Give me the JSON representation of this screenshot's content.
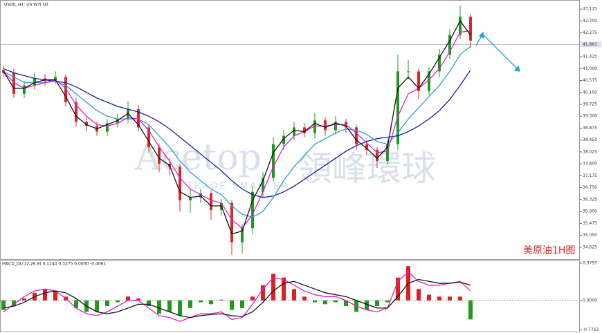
{
  "chart_data": [
    {
      "type": "candlestick",
      "title": "USOIL,H1: US WTI Oil",
      "watermark": [
        "Acetop",
        "領峰環球",
        "TRADE SMARTER"
      ],
      "annotation": "美原油1H图",
      "current_price": 41.861,
      "up_color": "#1d9a1d",
      "down_color": "#d42a2a",
      "open": [
        40.95,
        40.85,
        40.1,
        40.4,
        40.65,
        40.55,
        40.7,
        39.8,
        39.1,
        38.95,
        38.75,
        39.05,
        39.2,
        39.55,
        38.9,
        38.2,
        37.6,
        37.5,
        36.3,
        36.4,
        36.55,
        35.95,
        36.2,
        34.8,
        35.3,
        36.6,
        37.1,
        38.3,
        38.6,
        38.9,
        38.7,
        39.15,
        38.8,
        39.1,
        38.9,
        38.3,
        38.1,
        37.7,
        38.3,
        40.9,
        40.9,
        40.2,
        40.9,
        41.5,
        42.2,
        42.85
      ],
      "high": [
        41.1,
        41.0,
        40.55,
        40.85,
        40.8,
        40.9,
        40.8,
        39.95,
        39.25,
        39.1,
        39.2,
        39.4,
        39.85,
        39.7,
        39.0,
        38.3,
        37.8,
        37.6,
        36.7,
        36.7,
        36.65,
        36.35,
        36.3,
        35.45,
        36.8,
        37.3,
        38.55,
        38.8,
        39.1,
        39.05,
        39.4,
        39.25,
        39.3,
        39.2,
        39.0,
        38.45,
        38.2,
        38.5,
        41.5,
        41.3,
        41.0,
        41.05,
        41.7,
        42.4,
        43.25,
        42.95
      ],
      "low": [
        40.7,
        39.95,
        39.95,
        40.25,
        40.4,
        40.45,
        39.65,
        38.95,
        38.75,
        38.6,
        38.6,
        38.9,
        39.05,
        38.75,
        38.0,
        37.3,
        37.2,
        35.9,
        35.85,
        36.2,
        35.6,
        35.75,
        34.35,
        34.4,
        35.1,
        36.4,
        36.95,
        38.1,
        38.45,
        38.55,
        38.5,
        38.6,
        38.65,
        38.7,
        38.1,
        37.9,
        37.45,
        37.55,
        38.1,
        40.6,
        39.9,
        40.05,
        40.7,
        41.35,
        42.05,
        41.75
      ],
      "close": [
        40.85,
        40.1,
        40.4,
        40.65,
        40.55,
        40.7,
        39.8,
        39.1,
        38.95,
        38.75,
        39.05,
        39.2,
        39.55,
        38.9,
        38.2,
        37.6,
        37.5,
        36.3,
        36.4,
        36.55,
        35.95,
        36.2,
        34.8,
        35.3,
        36.6,
        37.1,
        38.3,
        38.6,
        38.9,
        38.7,
        39.15,
        38.8,
        39.1,
        38.9,
        38.3,
        38.1,
        37.7,
        38.3,
        40.9,
        40.9,
        40.2,
        40.9,
        41.5,
        42.2,
        42.85,
        42.0
      ],
      "series": [
        {
          "color": "#1b1b9a",
          "values": [
            41.0,
            40.85,
            40.75,
            40.65,
            40.6,
            40.55,
            40.5,
            40.35,
            40.15,
            39.95,
            39.8,
            39.65,
            39.55,
            39.45,
            39.3,
            39.1,
            38.85,
            38.55,
            38.25,
            37.95,
            37.65,
            37.35,
            37.0,
            36.7,
            36.5,
            36.4,
            36.45,
            36.6,
            36.8,
            37.05,
            37.3,
            37.55,
            37.8,
            38.05,
            38.25,
            38.4,
            38.5,
            38.55,
            38.6,
            38.75,
            38.95,
            39.2,
            39.5,
            39.9,
            40.4,
            40.95
          ]
        },
        {
          "color": "#2a9fd8",
          "values": [
            40.9,
            40.7,
            40.5,
            40.5,
            40.5,
            40.55,
            40.4,
            40.1,
            39.8,
            39.5,
            39.3,
            39.2,
            39.2,
            39.2,
            39.0,
            38.6,
            38.2,
            37.7,
            37.3,
            37.0,
            36.7,
            36.5,
            36.1,
            35.8,
            35.7,
            35.9,
            36.4,
            37.0,
            37.5,
            37.9,
            38.3,
            38.5,
            38.7,
            38.85,
            38.8,
            38.65,
            38.4,
            38.3,
            38.7,
            39.2,
            39.6,
            40.0,
            40.4,
            40.9,
            41.5,
            41.8
          ]
        },
        {
          "color": "#e020c8",
          "values": [
            40.9,
            40.5,
            40.3,
            40.4,
            40.5,
            40.6,
            40.3,
            39.7,
            39.3,
            39.0,
            38.95,
            39.05,
            39.25,
            39.2,
            38.8,
            38.2,
            37.7,
            37.1,
            36.7,
            36.5,
            36.3,
            36.2,
            35.6,
            35.3,
            35.8,
            36.6,
            37.5,
            38.2,
            38.6,
            38.75,
            38.95,
            38.95,
            39.0,
            39.0,
            38.7,
            38.35,
            38.0,
            38.05,
            39.3,
            40.1,
            40.3,
            40.6,
            41.0,
            41.6,
            42.3,
            42.35
          ]
        },
        {
          "color": "#111111",
          "values": [
            40.9,
            40.3,
            40.3,
            40.5,
            40.6,
            40.6,
            40.0,
            39.3,
            39.0,
            38.85,
            39.0,
            39.15,
            39.4,
            39.0,
            38.4,
            37.8,
            37.55,
            36.6,
            36.4,
            36.45,
            36.1,
            36.1,
            35.1,
            35.2,
            36.3,
            37.0,
            38.0,
            38.5,
            38.8,
            38.75,
            39.05,
            38.9,
            39.05,
            38.95,
            38.45,
            38.15,
            37.8,
            38.2,
            40.3,
            40.7,
            40.3,
            40.8,
            41.4,
            42.0,
            42.7,
            42.2
          ]
        }
      ],
      "ylim": [
        34.2,
        43.4
      ],
      "yticks": [
        43.125,
        {
          "value": 42.7,
          "label": "42.700"
        },
        42.275,
        41.425,
        {
          "value": 41,
          "label": "41.000"
        },
        40.575,
        {
          "value": 40.15,
          "label": "40.150"
        },
        39.725,
        {
          "value": 39.3,
          "label": "39.300"
        },
        38.875,
        {
          "value": 38.45,
          "label": "38.450"
        },
        38.025,
        {
          "value": 37.6,
          "label": "37.600"
        },
        37.175,
        {
          "value": 36.75,
          "label": "36.750"
        },
        36.325,
        {
          "value": 35.9,
          "label": "35.900"
        },
        35.475,
        {
          "value": 35.05,
          "label": "35.050"
        },
        34.625
      ]
    },
    {
      "type": "macd",
      "title": "MACD_DL(12,26,9) 0.1244 0.3275 0.0000 -0.4061",
      "pos_color": "#e02020",
      "neg_color": "#1f9a1f",
      "values": [
        -0.25,
        -0.15,
        0.05,
        0.2,
        0.3,
        0.25,
        0.1,
        -0.2,
        -0.3,
        -0.3,
        -0.15,
        -0.05,
        0.1,
        0.05,
        -0.15,
        -0.35,
        -0.3,
        -0.4,
        -0.2,
        -0.05,
        -0.1,
        0.02,
        -0.25,
        -0.2,
        0.1,
        0.4,
        0.7,
        0.6,
        0.3,
        0.1,
        -0.05,
        -0.1,
        -0.05,
        -0.15,
        -0.3,
        -0.25,
        -0.15,
        -0.05,
        0.6,
        0.9,
        0.3,
        0.15,
        0.1,
        0.1,
        0.1,
        -0.5
      ],
      "series": [
        {
          "color": "#e020c8",
          "values": [
            -0.3,
            -0.1,
            0.1,
            0.25,
            0.3,
            0.25,
            0.05,
            -0.2,
            -0.35,
            -0.4,
            -0.3,
            -0.15,
            0.0,
            0.0,
            -0.2,
            -0.4,
            -0.45,
            -0.55,
            -0.45,
            -0.35,
            -0.35,
            -0.3,
            -0.5,
            -0.45,
            -0.1,
            0.3,
            0.6,
            0.55,
            0.4,
            0.25,
            0.15,
            0.1,
            0.1,
            0.0,
            -0.15,
            -0.25,
            -0.3,
            -0.2,
            0.5,
            0.75,
            0.5,
            0.4,
            0.4,
            0.45,
            0.5,
            0.25
          ]
        },
        {
          "color": "#111111",
          "values": [
            -0.2,
            -0.15,
            -0.05,
            0.1,
            0.2,
            0.25,
            0.2,
            0.05,
            -0.15,
            -0.3,
            -0.35,
            -0.3,
            -0.2,
            -0.1,
            -0.1,
            -0.2,
            -0.3,
            -0.4,
            -0.45,
            -0.4,
            -0.37,
            -0.35,
            -0.4,
            -0.42,
            -0.3,
            -0.05,
            0.25,
            0.45,
            0.5,
            0.4,
            0.3,
            0.2,
            0.15,
            0.1,
            0.0,
            -0.1,
            -0.2,
            -0.2,
            0.1,
            0.45,
            0.55,
            0.5,
            0.45,
            0.45,
            0.48,
            0.4
          ]
        }
      ],
      "ylim": [
        -0.82,
        1.05
      ],
      "yticks": [
        0.9797,
        {
          "value": 0,
          "label": "0.0000"
        },
        -0.7763
      ]
    }
  ]
}
